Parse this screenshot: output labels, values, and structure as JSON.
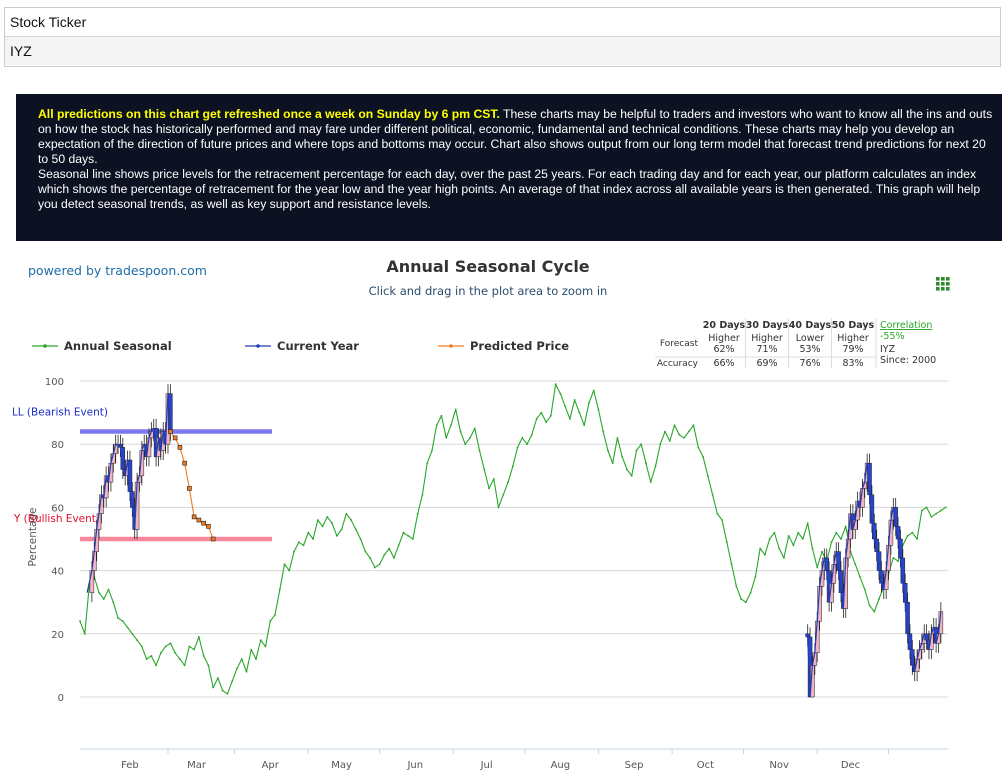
{
  "ticker": {
    "label": "Stock Ticker",
    "value": "IYZ"
  },
  "info": {
    "highlight": "All predictions on this chart get refreshed once a week on Sunday by 6 pm CST.",
    "text1": " These charts may be helpful to traders and investors who want to know all the ins and outs on how the stock has historically performed and may fare under different political, economic, fundamental and technical conditions. These charts may help you develop an expectation of the direction of future prices and where tops and bottoms may occur. Chart also shows output from our long term model that forecast trend predictions for next 20 to 50 days.",
    "text2": "Seasonal line shows price levels for the retracement percentage for each day, over the past 25 years. For each trading day and for each year, our platform calculates an index which shows the percentage of retracement for the year low and the year high points. An average of that index across all available years is then generated. This graph will help you detect seasonal trends, as well as key support and resistance levels."
  },
  "chart_header": {
    "powered_by": "powered by tradespoon.com",
    "title": "Annual Seasonal Cycle",
    "subtitle": "Click and drag in the plot area to zoom in",
    "menu_icon": "grid-menu-icon"
  },
  "forecast_table": {
    "headers": [
      "20 Days",
      "30 Days",
      "40 Days",
      "50 Days"
    ],
    "correlation_label": "Correlation",
    "correlation_value": "-55%",
    "symbol": "IYZ",
    "since": "Since: 2000",
    "forecast_label": "Forecast",
    "accuracy_label": "Accuracy",
    "directions": [
      "Higher",
      "Higher",
      "Lower",
      "Higher"
    ],
    "direction_pcts": [
      "62%",
      "71%",
      "53%",
      "79%"
    ],
    "accuracy": [
      "66%",
      "69%",
      "76%",
      "83%"
    ]
  },
  "chart_data": {
    "type": "line",
    "ylabel": "Percentage",
    "ylim": [
      0,
      100
    ],
    "y_ticks": [
      0,
      20,
      40,
      60,
      80,
      100
    ],
    "x_ticks": [
      "Feb",
      "Mar",
      "Apr",
      "May",
      "Jun",
      "Jul",
      "Aug",
      "Sep",
      "Oct",
      "Nov",
      "Dec"
    ],
    "legend_position": "top",
    "series": [
      {
        "name": "Annual Seasonal",
        "color": "#2aa62a",
        "x": [
          0,
          2,
          4,
          6,
          8,
          10,
          12,
          14,
          16,
          18,
          20,
          22,
          24,
          26,
          28,
          30,
          32,
          34,
          36,
          38,
          40,
          42,
          44,
          46,
          48,
          50,
          52,
          54,
          56,
          58,
          60,
          62,
          64,
          66,
          68,
          70,
          72,
          74,
          76,
          78,
          80,
          82,
          84,
          86,
          88,
          90,
          92,
          94,
          96,
          98,
          100,
          102,
          104,
          106,
          108,
          110,
          112,
          114,
          116,
          118,
          120,
          122,
          124,
          126,
          128,
          130,
          132,
          134,
          136,
          138,
          140,
          142,
          144,
          146,
          148,
          150,
          152,
          154,
          156,
          158,
          160,
          162,
          164,
          166,
          168,
          170,
          172,
          174,
          176,
          178,
          180,
          182,
          184,
          186,
          188,
          190,
          192,
          194,
          196,
          198,
          200,
          202,
          204,
          206,
          208,
          210,
          212,
          214,
          216,
          218,
          220,
          222,
          224,
          226,
          228,
          230,
          232,
          234,
          236,
          238,
          240,
          242,
          244,
          246,
          248,
          250,
          252,
          254,
          256,
          258,
          260,
          262,
          264,
          266,
          268,
          270,
          272,
          274,
          276,
          278,
          280,
          282,
          284,
          286,
          288,
          290,
          292,
          294,
          296,
          298,
          300,
          302,
          304,
          306,
          308,
          310,
          312,
          314,
          316,
          318,
          320,
          322,
          324,
          326,
          328,
          330,
          332,
          334,
          336,
          338,
          340,
          342,
          344,
          346,
          348,
          350,
          352,
          354,
          356,
          358,
          360,
          362,
          364
        ],
        "values": [
          24,
          20,
          36,
          38,
          33,
          31,
          34,
          30,
          25,
          24,
          22,
          20,
          18,
          16,
          12,
          13,
          10,
          14,
          16,
          17,
          14,
          12,
          10,
          16,
          15,
          19,
          13,
          10,
          3,
          6,
          2,
          1,
          5,
          9,
          12,
          8,
          15,
          12,
          18,
          16,
          24,
          26,
          34,
          42,
          40,
          46,
          49,
          48,
          52,
          50,
          56,
          54,
          57,
          55,
          51,
          53,
          58,
          56,
          53,
          50,
          46,
          44,
          41,
          42,
          45,
          47,
          44,
          48,
          52,
          51,
          50,
          58,
          64,
          74,
          78,
          86,
          89,
          82,
          86,
          91,
          84,
          80,
          82,
          85,
          78,
          72,
          66,
          69,
          60,
          64,
          68,
          73,
          79,
          82,
          80,
          83,
          88,
          90,
          87,
          89,
          99,
          96,
          92,
          88,
          94,
          90,
          86,
          93,
          97,
          91,
          84,
          78,
          74,
          82,
          76,
          72,
          70,
          78,
          80,
          74,
          68,
          73,
          80,
          84,
          81,
          86,
          83,
          82,
          84,
          86,
          79,
          76,
          70,
          64,
          58,
          56,
          49,
          42,
          35,
          31,
          30,
          33,
          38,
          47,
          45,
          50,
          52,
          47,
          44,
          51,
          48,
          52,
          50,
          55,
          47,
          41,
          46,
          43,
          49,
          52,
          50,
          54,
          46,
          42,
          38,
          34,
          29,
          27,
          31,
          35,
          39,
          44,
          43,
          48,
          51,
          52,
          50,
          59,
          60,
          57,
          58,
          59,
          60
        ]
      },
      {
        "name": "Current Year",
        "color": "#1f3db5",
        "x": [
          3,
          5,
          6,
          7,
          8,
          9,
          10,
          11,
          12,
          13,
          14,
          15,
          16,
          17,
          18,
          19,
          20,
          21,
          22,
          23,
          24,
          25,
          26,
          27,
          28,
          29,
          30,
          31,
          32,
          33,
          34,
          35,
          36,
          37,
          38
        ],
        "values": [
          33,
          40,
          46,
          53,
          58,
          64,
          63,
          70,
          68,
          74,
          77,
          80,
          80,
          79,
          72,
          70,
          75,
          65,
          60,
          53,
          68,
          70,
          78,
          80,
          76,
          82,
          84,
          85,
          76,
          82,
          78,
          84,
          80,
          96,
          84
        ]
      },
      {
        "name": "Predicted Price",
        "color": "#ee7c23",
        "x": [
          38,
          40,
          42,
          44,
          46,
          48,
          50,
          52,
          54,
          56
        ],
        "values": [
          84,
          82,
          79,
          74,
          66,
          57,
          56,
          55,
          54,
          50
        ]
      }
    ],
    "current_year_late": {
      "x": [
        305,
        306,
        307,
        308,
        309,
        310,
        311,
        312,
        313,
        314,
        315,
        316,
        317,
        318,
        319,
        320,
        321,
        322,
        323,
        324,
        325,
        326,
        327,
        328,
        329,
        330,
        331,
        332,
        333,
        334,
        335,
        336,
        337,
        338,
        339,
        340,
        341,
        342,
        343,
        344,
        345,
        346,
        347,
        348,
        349,
        350,
        351,
        352,
        353,
        354,
        355,
        356,
        357,
        358,
        359,
        360,
        361,
        362
      ],
      "values": [
        20,
        19,
        0,
        10,
        14,
        24,
        35,
        40,
        44,
        40,
        30,
        36,
        42,
        46,
        40,
        33,
        28,
        44,
        50,
        58,
        53,
        56,
        62,
        60,
        66,
        68,
        74,
        64,
        55,
        50,
        46,
        40,
        36,
        34,
        40,
        48,
        56,
        60,
        54,
        50,
        44,
        36,
        30,
        20,
        15,
        10,
        8,
        12,
        15,
        17,
        20,
        18,
        15,
        20,
        22,
        17,
        20,
        27
      ]
    },
    "bands": [
      {
        "label": "SELL (Bearish Event)",
        "value": 84,
        "color": "#7b78ec"
      },
      {
        "label": "BUY (Bullish Event)",
        "value": 50,
        "color": "#f7879a"
      }
    ]
  }
}
